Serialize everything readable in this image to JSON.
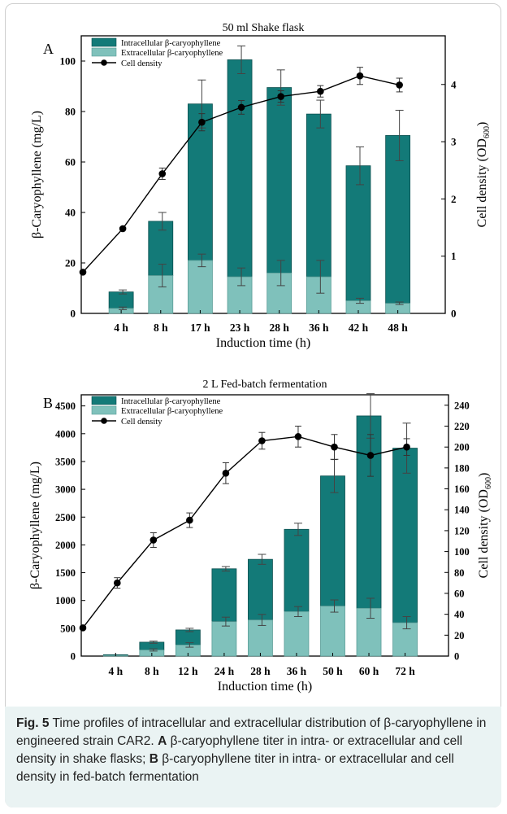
{
  "chart_data": [
    {
      "panel_letter": "A",
      "type": "stacked bar + line",
      "title": "50 ml Shake flask",
      "xlabel": "Induction time (h)",
      "ylabel": "β-Caryophyllene (mg/L)",
      "ylabel2": "Cell density (OD600)",
      "ylim": [
        0,
        110
      ],
      "yticks": [
        "0",
        "20",
        "40",
        "60",
        "80",
        "100"
      ],
      "y2lim": [
        0,
        4.85
      ],
      "y2ticks": [
        "0",
        "1",
        "2",
        "3",
        "4"
      ],
      "categories": [
        "4 h",
        "8 h",
        "17 h",
        "23 h",
        "28 h",
        "36 h",
        "42 h",
        "48 h"
      ],
      "legend": [
        "Intracellular β-caryophyllene",
        "Extracellular β-caryophyllene",
        "Cell density"
      ],
      "series": [
        {
          "name": "Extracellular β-caryophyllene",
          "values": [
            2,
            15,
            21,
            14.5,
            16,
            14.5,
            5,
            4
          ],
          "errors": [
            0.5,
            4.5,
            2.5,
            3.5,
            5,
            6.5,
            1,
            0.5
          ]
        },
        {
          "name": "Intracellular β-caryophyllene",
          "values": [
            6.5,
            21.5,
            62,
            86,
            73.5,
            64.5,
            53.5,
            66.5
          ],
          "errors": [
            0.8,
            3.5,
            9.5,
            5.5,
            7,
            5.5,
            7.5,
            10
          ]
        }
      ],
      "line": {
        "name": "Cell density",
        "x": [
          "0 h",
          "4 h",
          "8 h",
          "17 h",
          "23 h",
          "28 h",
          "36 h",
          "42 h",
          "48 h"
        ],
        "values": [
          0.72,
          1.48,
          2.44,
          3.34,
          3.6,
          3.79,
          3.88,
          4.15,
          3.99
        ],
        "errors": [
          0,
          0,
          0.1,
          0.15,
          0.12,
          0.1,
          0.1,
          0.15,
          0.12
        ]
      }
    },
    {
      "panel_letter": "B",
      "type": "stacked bar + line",
      "title": "2 L Fed-batch fermentation",
      "xlabel": "Induction time (h)",
      "ylabel": "β-Caryophyllene (mg/L)",
      "ylabel2": "Cell density (OD600)",
      "ylim": [
        0,
        4700
      ],
      "yticks": [
        "0",
        "500",
        "1000",
        "1500",
        "2000",
        "2500",
        "3000",
        "3500",
        "4000",
        "4500"
      ],
      "y2lim": [
        0,
        250
      ],
      "y2ticks": [
        "0",
        "20",
        "40",
        "60",
        "80",
        "100",
        "120",
        "140",
        "160",
        "180",
        "200",
        "220",
        "240"
      ],
      "categories": [
        "4 h",
        "8 h",
        "12 h",
        "24 h",
        "28 h",
        "36 h",
        "50 h",
        "60 h",
        "72 h"
      ],
      "legend": [
        "Intracellular β-caryophyllene",
        "Extracellular β-caryophyllene",
        "Cell density"
      ],
      "series": [
        {
          "name": "Extracellular β-caryophyllene",
          "values": [
            10,
            110,
            200,
            620,
            650,
            800,
            900,
            860,
            600
          ],
          "errors": [
            0,
            20,
            40,
            80,
            100,
            90,
            110,
            180,
            110
          ]
        },
        {
          "name": "Intracellular β-caryophyllene",
          "values": [
            15,
            140,
            270,
            950,
            1090,
            1480,
            2340,
            3460,
            3140
          ],
          "errors": [
            0,
            20,
            30,
            40,
            90,
            110,
            300,
            400,
            450
          ]
        }
      ],
      "line": {
        "name": "Cell density",
        "x": [
          "0 h",
          "4 h",
          "8 h",
          "12 h",
          "24 h",
          "28 h",
          "36 h",
          "50 h",
          "60 h",
          "72 h"
        ],
        "values": [
          27,
          70,
          111,
          130,
          175,
          206,
          210,
          200,
          192,
          200
        ],
        "errors": [
          0,
          5,
          7,
          7,
          10,
          8,
          10,
          12,
          20,
          8
        ]
      }
    }
  ],
  "colors": {
    "intracellular": "#137a78",
    "extracellular": "#7fc1bb",
    "line": "#000000"
  },
  "caption": {
    "fig_label": "Fig. 5",
    "intro": "Time profiles of intracellular and extracellular distribution of β-caryophyllene in engineered strain CAR2.",
    "a_label": "A",
    "a_text": "β-caryophyllene titer in intra- or extracellular and cell density in shake flasks;",
    "b_label": "B",
    "b_text": "β-caryophyllene titer in intra- or extracellular and cell density in fed-batch fermentation"
  }
}
